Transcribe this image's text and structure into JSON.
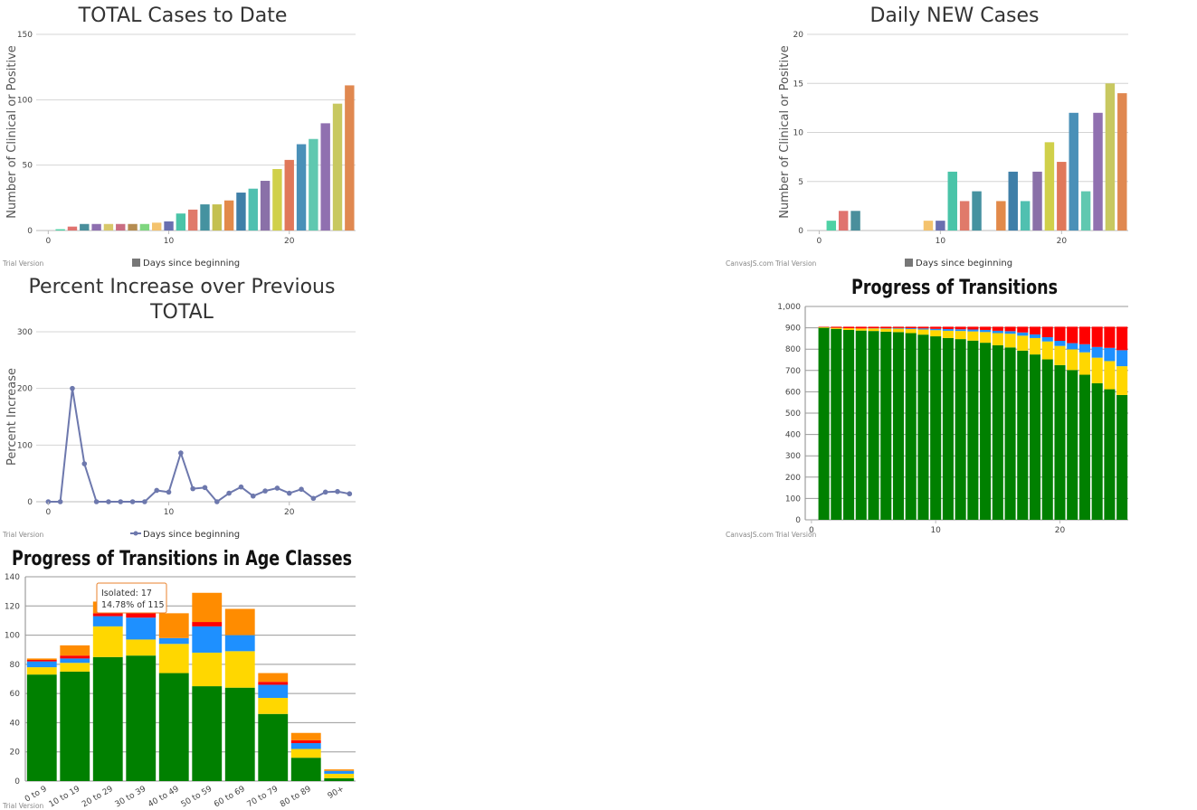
{
  "palette": [
    "#4fd1a5",
    "#e0736f",
    "#4a8f9c",
    "#8e6fb0",
    "#d8c86a",
    "#c96d82",
    "#b58d52",
    "#7fd67f",
    "#f4c36e",
    "#6a6fb0",
    "#4ac4a8",
    "#e07a6a",
    "#4592a0",
    "#c4c050",
    "#e28a4a",
    "#3f7fa8",
    "#50c0b0",
    "#8a70a8",
    "#d0d04a",
    "#e0785a",
    "#4a90b8",
    "#60c8b0",
    "#9070b0",
    "#c8c860",
    "#e08850",
    "#8066a8"
  ],
  "trial": {
    "text": "Trial Version",
    "brand": "CanvasJS.com"
  },
  "charts": [
    {
      "id": "total",
      "chart_data": {
        "type": "bar",
        "title": "TOTAL Cases to Date",
        "ylabel": "Number of Clinical or Positive",
        "legend": "Days since beginning",
        "x": [
          1,
          2,
          3,
          4,
          5,
          6,
          7,
          8,
          9,
          10,
          11,
          12,
          13,
          14,
          15,
          16,
          17,
          18,
          19,
          20,
          21,
          22,
          23,
          24,
          25
        ],
        "values": [
          1,
          3,
          5,
          5,
          5,
          5,
          5,
          5,
          6,
          7,
          13,
          16,
          20,
          20,
          23,
          29,
          32,
          38,
          47,
          54,
          66,
          70,
          82,
          97,
          111
        ],
        "xlim": [
          -1,
          25.5
        ],
        "ylim": [
          0,
          150
        ],
        "xticks": [
          0,
          10,
          20
        ],
        "yticks": [
          0,
          50,
          100,
          150
        ]
      }
    },
    {
      "id": "daily",
      "chart_data": {
        "type": "bar",
        "title": "Daily NEW Cases",
        "ylabel": "Number of Clinical or Positive",
        "legend": "Days since beginning",
        "x": [
          1,
          2,
          3,
          4,
          5,
          6,
          7,
          8,
          9,
          10,
          11,
          12,
          13,
          14,
          15,
          16,
          17,
          18,
          19,
          20,
          21,
          22,
          23,
          24,
          25
        ],
        "values": [
          1,
          2,
          2,
          0,
          0,
          0,
          0,
          0,
          1,
          1,
          6,
          3,
          4,
          0,
          3,
          6,
          3,
          6,
          9,
          7,
          12,
          4,
          12,
          15,
          14
        ],
        "xlim": [
          -1,
          25.5
        ],
        "ylim": [
          0,
          20
        ],
        "xticks": [
          0,
          10,
          20
        ],
        "yticks": [
          0,
          5,
          10,
          15,
          20
        ]
      }
    },
    {
      "id": "percent",
      "chart_data": {
        "type": "line",
        "title": [
          "Percent Increase over Previous",
          "TOTAL"
        ],
        "ylabel": "Percent Increase",
        "legend": "Days since beginning",
        "x": [
          0,
          1,
          2,
          3,
          4,
          5,
          6,
          7,
          8,
          9,
          10,
          11,
          12,
          13,
          14,
          15,
          16,
          17,
          18,
          19,
          20,
          21,
          22,
          23,
          24,
          25
        ],
        "values": [
          0,
          0,
          200,
          67,
          0,
          0,
          0,
          0,
          0,
          20,
          17,
          86,
          23,
          25,
          0,
          15,
          26,
          10,
          19,
          24,
          15,
          22,
          6,
          17,
          18,
          14
        ],
        "xlim": [
          -1,
          25.5
        ],
        "ylim": [
          0,
          300
        ],
        "xticks": [
          0,
          10,
          20
        ],
        "yticks": [
          0,
          100,
          200,
          300
        ]
      }
    },
    {
      "id": "transitions",
      "chart_data": {
        "type": "bar",
        "stacked": true,
        "title": "Progress of Transitions",
        "x": [
          1,
          2,
          3,
          4,
          5,
          6,
          7,
          8,
          9,
          10,
          11,
          12,
          13,
          14,
          15,
          16,
          17,
          18,
          19,
          20,
          21,
          22,
          23,
          24,
          25
        ],
        "series": [
          {
            "color": "#008000",
            "values": [
              900,
              895,
              890,
              887,
              885,
              882,
              880,
              875,
              868,
              860,
              852,
              847,
              840,
              830,
              818,
              808,
              793,
              775,
              752,
              725,
              702,
              680,
              640,
              612,
              585
            ]
          },
          {
            "color": "#ffd700",
            "values": [
              3,
              5,
              8,
              10,
              12,
              14,
              16,
              19,
              24,
              29,
              34,
              38,
              43,
              50,
              57,
              64,
              70,
              77,
              84,
              90,
              97,
              105,
              120,
              132,
              135
            ]
          },
          {
            "color": "#1e90ff",
            "values": [
              0,
              0,
              0,
              0,
              1,
              2,
              3,
              4,
              5,
              6,
              8,
              8,
              9,
              10,
              11,
              12,
              15,
              17,
              20,
              24,
              29,
              38,
              50,
              62,
              75
            ]
          },
          {
            "color": "#ff0000",
            "values": [
              2,
              5,
              7,
              8,
              7,
              7,
              6,
              7,
              8,
              10,
              11,
              12,
              13,
              15,
              19,
              21,
              27,
              36,
              49,
              66,
              77,
              82,
              95,
              99,
              110
            ]
          }
        ],
        "xlim": [
          -0.5,
          25.5
        ],
        "ylim": [
          0,
          1000
        ],
        "xticks": [
          0,
          10,
          20
        ],
        "yticks": [
          0,
          100,
          200,
          300,
          400,
          500,
          600,
          700,
          800,
          900,
          1000
        ],
        "ytick_labels": [
          "0",
          "100",
          "200",
          "300",
          "400",
          "500",
          "600",
          "700",
          "800",
          "900",
          "1,000"
        ]
      }
    },
    {
      "id": "age",
      "chart_data": {
        "type": "bar",
        "stacked": true,
        "title": "Progress of Transitions in Age Classes",
        "categories": [
          "0 to 9",
          "10 to 19",
          "20 to 29",
          "30 to 39",
          "40 to 49",
          "50 to 59",
          "60 to 69",
          "70 to 79",
          "80 to 89",
          "90+"
        ],
        "series": [
          {
            "color": "#008000",
            "values": [
              73,
              75,
              85,
              86,
              74,
              65,
              64,
              46,
              16,
              2
            ]
          },
          {
            "color": "#ffd700",
            "values": [
              5,
              6,
              21,
              11,
              20,
              23,
              25,
              11,
              6,
              3
            ]
          },
          {
            "color": "#1e90ff",
            "values": [
              4,
              3,
              7,
              15,
              4,
              18,
              11,
              9,
              4,
              2
            ]
          },
          {
            "color": "#ff0000",
            "values": [
              1,
              2,
              2,
              3,
              0,
              3,
              0,
              2,
              2,
              0
            ]
          },
          {
            "color": "#ff8c00",
            "values": [
              1,
              7,
              8,
              17,
              17,
              20,
              18,
              6,
              5,
              1
            ]
          }
        ],
        "ylim": [
          0,
          140
        ],
        "yticks": [
          0,
          20,
          40,
          60,
          80,
          100,
          120,
          140
        ],
        "tooltip": {
          "line1": "Isolated: 17",
          "line2": "14.78% of 115"
        }
      }
    }
  ]
}
